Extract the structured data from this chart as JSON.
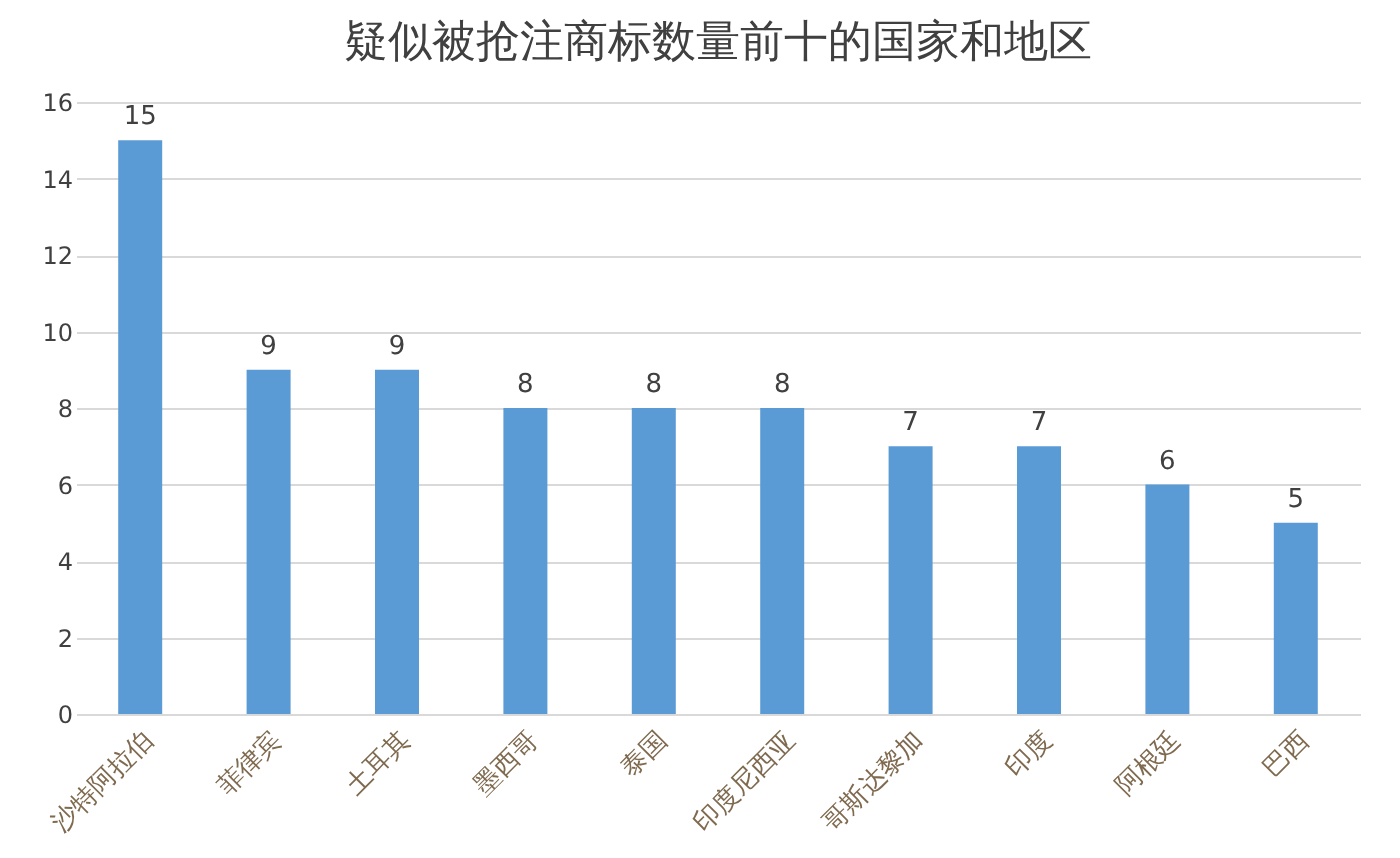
{
  "chart_data": {
    "type": "bar",
    "title": "疑似被抢注商标数量前十的国家和地区",
    "categories": [
      "沙特阿拉伯",
      "菲律宾",
      "土耳其",
      "墨西哥",
      "泰国",
      "印度尼西亚",
      "哥斯达黎加",
      "印度",
      "阿根廷",
      "巴西"
    ],
    "values": [
      15,
      9,
      9,
      8,
      8,
      8,
      7,
      7,
      6,
      5
    ],
    "color": "#5b9bd5",
    "ylim": [
      0,
      16
    ],
    "yticks": [
      0,
      2,
      4,
      6,
      8,
      10,
      12,
      14,
      16
    ],
    "grid": "y",
    "data_labels": true
  }
}
